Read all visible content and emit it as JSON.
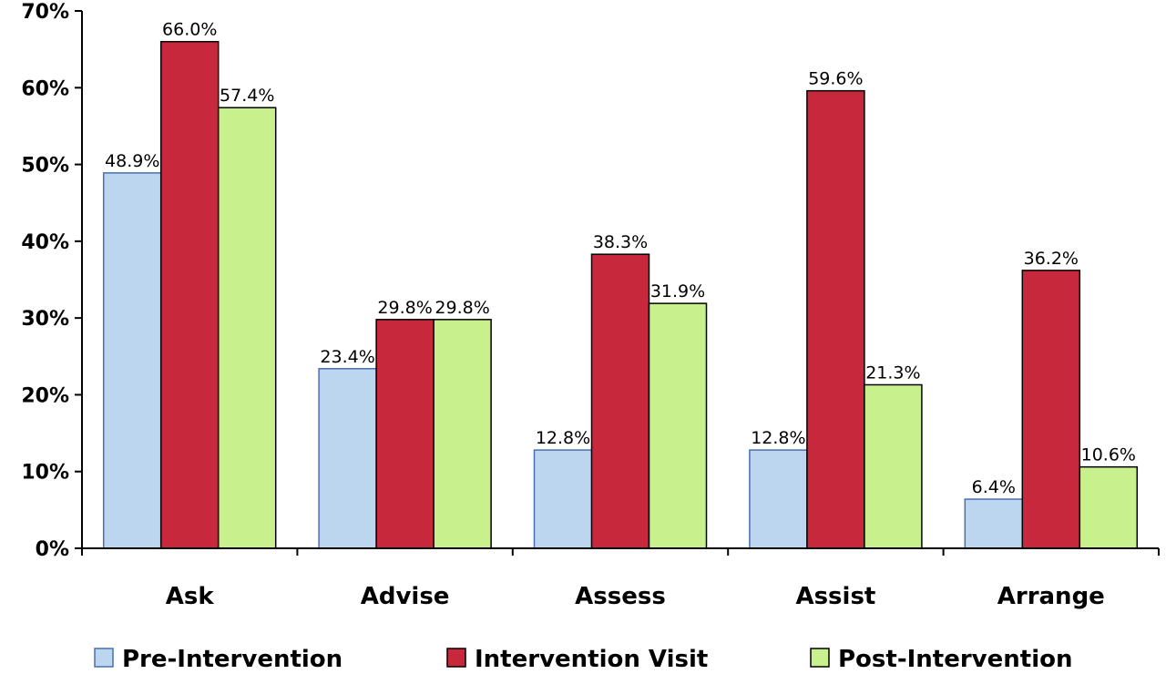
{
  "chart_data": {
    "type": "bar",
    "categories": [
      "Ask",
      "Advise",
      "Assess",
      "Assist",
      "Arrange"
    ],
    "series": [
      {
        "name": "Pre-Intervention",
        "values": [
          48.9,
          23.4,
          12.8,
          12.8,
          6.4
        ],
        "labels": [
          "48.9%",
          "23.4%",
          "12.8%",
          "12.8%",
          "6.4%"
        ],
        "color": "#bcd6f0",
        "stroke": "#4a6fb0"
      },
      {
        "name": "Intervention Visit",
        "values": [
          66.0,
          29.8,
          38.3,
          59.6,
          36.2
        ],
        "labels": [
          "66.0%",
          "29.8%",
          "38.3%",
          "59.6%",
          "36.2%"
        ],
        "color": "#c8283c",
        "stroke": "#000000"
      },
      {
        "name": "Post-Intervention",
        "values": [
          57.4,
          29.8,
          31.9,
          21.3,
          10.6
        ],
        "labels": [
          "57.4%",
          "29.8%",
          "31.9%",
          "21.3%",
          "10.6%"
        ],
        "color": "#c8f08c",
        "stroke": "#000000"
      }
    ],
    "yticks": [
      "0%",
      "10%",
      "20%",
      "30%",
      "40%",
      "50%",
      "60%",
      "70%"
    ],
    "ylim": [
      0,
      70
    ],
    "grid": false,
    "legend_position": "bottom"
  }
}
